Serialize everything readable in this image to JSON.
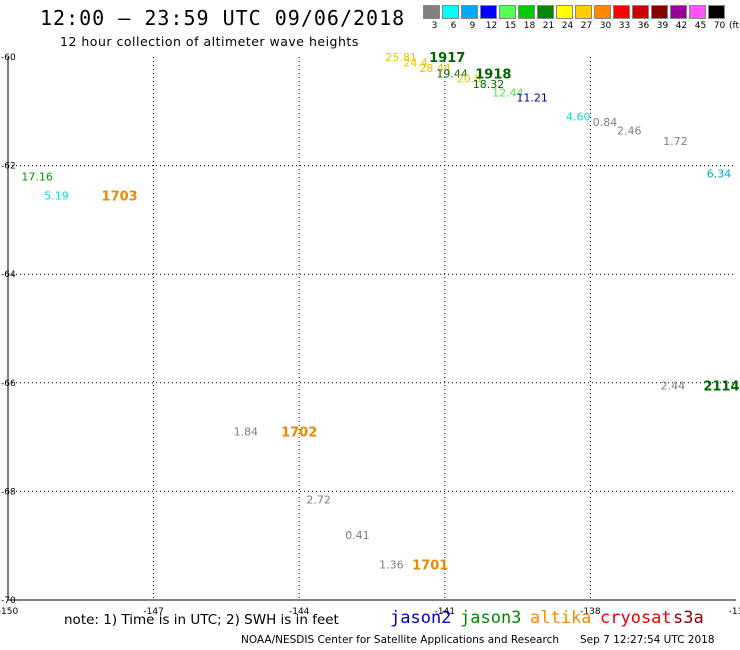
{
  "header": {
    "title": "12:00 – 23:59 UTC 09/06/2018",
    "subtitle": "12 hour collection of altimeter wave heights"
  },
  "legend": {
    "unit": "(ft)",
    "items": [
      {
        "label": "3",
        "color": "#808080"
      },
      {
        "label": "6",
        "color": "#00ffff"
      },
      {
        "label": "9",
        "color": "#00aaff"
      },
      {
        "label": "12",
        "color": "#0000ff"
      },
      {
        "label": "15",
        "color": "#55ff55"
      },
      {
        "label": "18",
        "color": "#00cc00"
      },
      {
        "label": "21",
        "color": "#008800"
      },
      {
        "label": "24",
        "color": "#ffff00"
      },
      {
        "label": "27",
        "color": "#ffcc00"
      },
      {
        "label": "30",
        "color": "#ff8800"
      },
      {
        "label": "33",
        "color": "#ff0000"
      },
      {
        "label": "36",
        "color": "#cc0000"
      },
      {
        "label": "39",
        "color": "#880000"
      },
      {
        "label": "42",
        "color": "#990099"
      },
      {
        "label": "45",
        "color": "#ff55ff"
      },
      {
        "label": "70",
        "color": "#000000"
      }
    ]
  },
  "chart_data": {
    "type": "scatter",
    "xlim": [
      -150,
      -135
    ],
    "ylim": [
      -70,
      -60
    ],
    "x_tick_labels": [
      "-150",
      "-147",
      "-144",
      "-141",
      "-138",
      "-13"
    ],
    "y_tick_labels": [
      "-60",
      "-62",
      "-64",
      "-66",
      "-68",
      "-70"
    ],
    "grid": true,
    "wave_heights": [
      {
        "lon": -141.9,
        "lat": -60.0,
        "value": "25.81",
        "color": "#e6c800"
      },
      {
        "lon": -141.6,
        "lat": -60.1,
        "value": "24.4",
        "color": "#e6c800"
      },
      {
        "lon": -141.2,
        "lat": -60.2,
        "value": "28.44",
        "color": "#e6c800"
      },
      {
        "lon": -140.85,
        "lat": -60.3,
        "value": "19.44",
        "color": "#006600"
      },
      {
        "lon": -140.5,
        "lat": -60.4,
        "value": "20.8",
        "color": "#e6c800"
      },
      {
        "lon": -140.1,
        "lat": -60.5,
        "value": "18.32",
        "color": "#006600"
      },
      {
        "lon": -139.7,
        "lat": -60.65,
        "value": "12.44",
        "color": "#55dd55"
      },
      {
        "lon": -139.2,
        "lat": -60.75,
        "value": "11.21",
        "color": "#000099"
      },
      {
        "lon": -138.25,
        "lat": -61.1,
        "value": "4.60",
        "color": "#00dddd"
      },
      {
        "lon": -137.7,
        "lat": -61.2,
        "value": "0.84",
        "color": "#808080"
      },
      {
        "lon": -137.2,
        "lat": -61.35,
        "value": "2.46",
        "color": "#808080"
      },
      {
        "lon": -136.25,
        "lat": -61.55,
        "value": "1.72",
        "color": "#808080"
      },
      {
        "lon": -135.35,
        "lat": -62.15,
        "value": "6.34",
        "color": "#00aacc"
      },
      {
        "lon": -149.4,
        "lat": -62.2,
        "value": "17.16",
        "color": "#009900"
      },
      {
        "lon": -149.0,
        "lat": -62.55,
        "value": "5.19",
        "color": "#00dddd"
      },
      {
        "lon": -136.3,
        "lat": -66.05,
        "value": "2.44",
        "color": "#808080"
      },
      {
        "lon": -145.1,
        "lat": -66.9,
        "value": "1.84",
        "color": "#808080"
      },
      {
        "lon": -143.6,
        "lat": -68.15,
        "value": "2.72",
        "color": "#808080"
      },
      {
        "lon": -142.8,
        "lat": -68.8,
        "value": "0.41",
        "color": "#808080"
      },
      {
        "lon": -142.1,
        "lat": -69.35,
        "value": "1.36",
        "color": "#808080"
      }
    ],
    "time_labels": [
      {
        "lon": -140.95,
        "lat": -60.0,
        "value": "1917",
        "color": "#006600"
      },
      {
        "lon": -140.0,
        "lat": -60.3,
        "value": "1918",
        "color": "#006600"
      },
      {
        "lon": -147.7,
        "lat": -62.55,
        "value": "1703",
        "color": "#ee8800"
      },
      {
        "lon": -135.3,
        "lat": -66.05,
        "value": "2114",
        "color": "#006600"
      },
      {
        "lon": -144.0,
        "lat": -66.9,
        "value": "1702",
        "color": "#ee8800"
      },
      {
        "lon": -141.3,
        "lat": -69.35,
        "value": "1701",
        "color": "#ee8800"
      }
    ]
  },
  "footer": {
    "note": "note: 1) Time is in UTC; 2) SWH is in feet",
    "satellites": [
      {
        "name": "jason2",
        "color": "#0000cc"
      },
      {
        "name": "jason3",
        "color": "#008800"
      },
      {
        "name": "altika",
        "color": "#ff8800"
      },
      {
        "name": "cryosat",
        "color": "#ee0000"
      },
      {
        "name": "s3a",
        "color": "#880000"
      }
    ],
    "credit": "NOAA/NESDIS Center for Satellite Applications and Research",
    "timestamp": "Sep  7 12:27:54 UTC 2018"
  }
}
